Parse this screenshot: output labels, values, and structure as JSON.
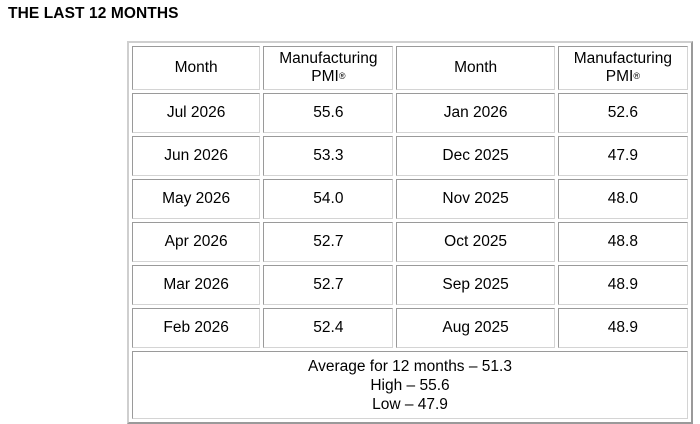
{
  "title": "THE LAST 12 MONTHS",
  "headers": {
    "month": "Month",
    "pmi_line1": "Manufacturing",
    "pmi_line2": "PMI",
    "pmi_mark": "®"
  },
  "rows": [
    {
      "month_a": "Jul 2026",
      "pmi_a": "55.6",
      "month_b": "Jan 2026",
      "pmi_b": "52.6"
    },
    {
      "month_a": "Jun 2026",
      "pmi_a": "53.3",
      "month_b": "Dec 2025",
      "pmi_b": "47.9"
    },
    {
      "month_a": "May 2026",
      "pmi_a": "54.0",
      "month_b": "Nov 2025",
      "pmi_b": "48.0"
    },
    {
      "month_a": "Apr 2026",
      "pmi_a": "52.7",
      "month_b": "Oct 2025",
      "pmi_b": "48.8"
    },
    {
      "month_a": "Mar 2026",
      "pmi_a": "52.7",
      "month_b": "Sep 2025",
      "pmi_b": "48.9"
    },
    {
      "month_a": "Feb 2026",
      "pmi_a": "52.4",
      "month_b": "Aug 2025",
      "pmi_b": "48.9"
    }
  ],
  "summary": {
    "average": "Average for 12 months – 51.3",
    "high": "High – 55.6",
    "low": "Low – 47.9"
  }
}
